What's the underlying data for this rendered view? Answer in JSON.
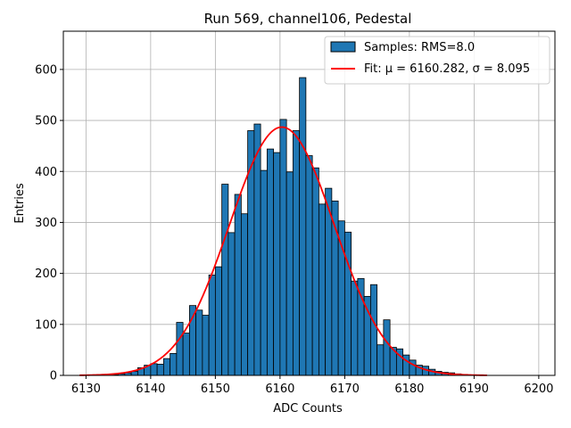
{
  "chart_data": {
    "type": "bar",
    "title": "Run 569, channel106, Pedestal",
    "xlabel": "ADC Counts",
    "ylabel": "Entries",
    "xlim": [
      6126.5,
      6202.5
    ],
    "ylim": [
      0,
      675
    ],
    "xticks": [
      "6130",
      "6140",
      "6150",
      "6160",
      "6170",
      "6180",
      "6190",
      "6200"
    ],
    "yticks": [
      "0",
      "100",
      "200",
      "300",
      "400",
      "500",
      "600"
    ],
    "grid": true,
    "legend_position": "top-right",
    "colors": {
      "bars": "#1f77b4",
      "bar_edge": "#000000",
      "fit": "#ff0000",
      "grid": "#b0b0b0"
    },
    "series": [
      {
        "name": "Samples: RMS=8.0",
        "kind": "histogram",
        "bin_width": 1,
        "bin_start": 6134,
        "values": [
          1,
          3,
          5,
          8,
          15,
          20,
          23,
          22,
          33,
          43,
          104,
          83,
          137,
          128,
          118,
          197,
          213,
          375,
          280,
          355,
          317,
          480,
          493,
          402,
          444,
          437,
          502,
          399,
          480,
          584,
          431,
          407,
          336,
          367,
          342,
          303,
          281,
          185,
          190,
          155,
          178,
          60,
          109,
          55,
          52,
          40,
          30,
          20,
          18,
          12,
          8,
          6,
          5,
          3,
          2,
          1
        ]
      },
      {
        "name": "Fit: μ = 6160.282, σ = 8.095",
        "kind": "gaussian",
        "mu": 6160.282,
        "sigma": 8.095,
        "amplitude": 487,
        "x_range": [
          6129,
          6192
        ]
      }
    ],
    "legend": {
      "samples_text": "Samples: RMS=8.0",
      "fit_text": "Fit: μ = 6160.282, σ = 8.095"
    }
  }
}
